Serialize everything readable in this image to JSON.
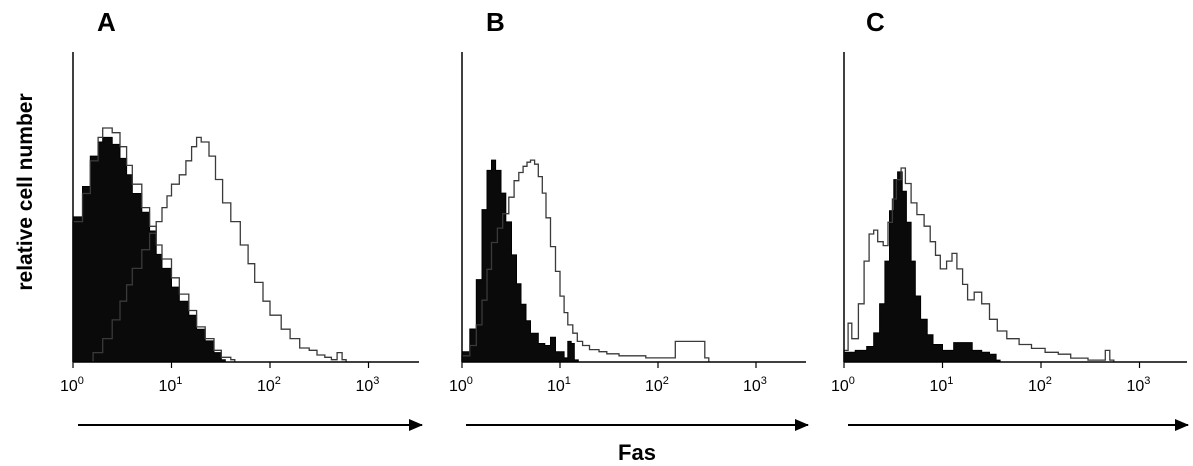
{
  "figure": {
    "ylabel": "relative cell number",
    "xlabel": "Fas"
  },
  "chart_data": [
    {
      "type": "area",
      "panel": "A",
      "xscale": "log",
      "xlim": [
        1,
        2000
      ],
      "ticks": [
        {
          "base": "10",
          "exp": "0",
          "value": 1
        },
        {
          "base": "10",
          "exp": "1",
          "value": 10
        },
        {
          "base": "10",
          "exp": "2",
          "value": 100
        },
        {
          "base": "10",
          "exp": "3",
          "value": 1000
        }
      ],
      "series": [
        {
          "style": "filled",
          "x": [
            1.0,
            1.25,
            1.5,
            1.8,
            2.0,
            2.5,
            3.0,
            3.5,
            4.0,
            5.0,
            6.0,
            7.0,
            8.0,
            10.0,
            12.0,
            15.0,
            18.0,
            22.0,
            27.0,
            32.0
          ],
          "y": [
            62,
            75,
            88,
            94,
            96,
            93,
            87,
            80,
            72,
            64,
            56,
            46,
            40,
            32,
            26,
            20,
            14,
            9,
            4,
            1
          ]
        },
        {
          "style": "open",
          "x": [
            1.0,
            1.25,
            1.5,
            1.8,
            2.0,
            2.5,
            3.0,
            3.5,
            4.0,
            5.0,
            6.0,
            7.0,
            8.0,
            10.0,
            12.0,
            15.0,
            18.0,
            22.0,
            27.0,
            32.0,
            40.0
          ],
          "y": [
            60,
            72,
            86,
            96,
            100,
            98,
            92,
            84,
            76,
            66,
            58,
            50,
            44,
            36,
            29,
            22,
            15,
            10,
            5,
            2,
            1
          ]
        },
        {
          "style": "open",
          "x": [
            1.6,
            2.0,
            2.5,
            3.0,
            3.5,
            4.0,
            5.0,
            6.0,
            7.0,
            8.0,
            9.0,
            10.0,
            12.0,
            14.0,
            16.0,
            18.0,
            20.0,
            24.0,
            28.0,
            33.0,
            40.0,
            50.0,
            60.0,
            70.0,
            85.0,
            100.0,
            130.0,
            160.0,
            200.0,
            250.0,
            300.0,
            360.0,
            420.0,
            480.0,
            540.0
          ],
          "y": [
            4,
            10,
            18,
            26,
            33,
            40,
            48,
            55,
            60,
            66,
            71,
            76,
            80,
            86,
            92,
            96,
            94,
            88,
            78,
            68,
            60,
            50,
            42,
            34,
            26,
            20,
            14,
            10,
            6,
            5,
            3,
            2,
            1,
            4,
            1
          ]
        }
      ]
    },
    {
      "type": "area",
      "panel": "B",
      "xscale": "log",
      "xlim": [
        1,
        2000
      ],
      "ticks": [
        {
          "base": "10",
          "exp": "0",
          "value": 1
        },
        {
          "base": "10",
          "exp": "1",
          "value": 10
        },
        {
          "base": "10",
          "exp": "2",
          "value": 100
        },
        {
          "base": "10",
          "exp": "3",
          "value": 1000
        }
      ],
      "series": [
        {
          "style": "filled",
          "x": [
            1.0,
            1.2,
            1.4,
            1.6,
            1.8,
            2.0,
            2.2,
            2.5,
            2.8,
            3.2,
            3.6,
            4.0,
            4.5,
            5.0,
            6.0,
            7.0,
            8.0,
            9.0,
            11.0,
            12.0,
            13.0,
            14.0
          ],
          "y": [
            5,
            16,
            40,
            74,
            93,
            98,
            93,
            82,
            68,
            52,
            38,
            28,
            20,
            14,
            9,
            8,
            12,
            5,
            2,
            10,
            9,
            1
          ]
        },
        {
          "style": "open",
          "x": [
            1.0,
            1.2,
            1.4,
            1.6,
            1.8,
            2.0,
            2.3,
            2.6,
            3.0,
            3.4,
            3.8,
            4.2,
            4.6,
            5.0,
            5.5,
            6.0,
            6.6,
            7.2,
            8.0,
            9.0,
            10.0,
            11.0,
            12.0,
            13.5,
            15.0,
            17.0,
            20.0,
            25.0,
            30.0,
            40.0,
            55.0,
            75.0,
            100.0,
            150.0,
            200.0,
            250.0,
            300.0
          ],
          "y": [
            3,
            8,
            18,
            30,
            45,
            58,
            65,
            72,
            80,
            88,
            92,
            95,
            97,
            98,
            96,
            90,
            82,
            70,
            56,
            44,
            32,
            24,
            18,
            14,
            10,
            8,
            6,
            5,
            4,
            3,
            3,
            2,
            2,
            10,
            10,
            10,
            2
          ]
        }
      ]
    },
    {
      "type": "area",
      "panel": "C",
      "xscale": "log",
      "xlim": [
        1,
        2000
      ],
      "ticks": [
        {
          "base": "10",
          "exp": "0",
          "value": 1
        },
        {
          "base": "10",
          "exp": "1",
          "value": 10
        },
        {
          "base": "10",
          "exp": "2",
          "value": 100
        },
        {
          "base": "10",
          "exp": "3",
          "value": 1000
        }
      ],
      "series": [
        {
          "style": "filled",
          "x": [
            1.0,
            1.3,
            1.7,
            2.0,
            2.3,
            2.6,
            2.9,
            3.2,
            3.5,
            3.9,
            4.3,
            4.8,
            5.3,
            6.0,
            7.0,
            8.0,
            10.0,
            13.0,
            16.0,
            20.0,
            25.0,
            30.0,
            35.0
          ],
          "y": [
            5,
            6,
            8,
            15,
            30,
            52,
            78,
            94,
            98,
            88,
            72,
            52,
            34,
            22,
            14,
            9,
            6,
            10,
            10,
            6,
            5,
            4,
            1
          ]
        },
        {
          "style": "open",
          "x": [
            1.0,
            1.1,
            1.2,
            1.4,
            1.6,
            1.8,
            2.0,
            2.2,
            2.5,
            2.8,
            3.1,
            3.4,
            3.8,
            4.2,
            4.8,
            5.5,
            6.5,
            7.5,
            8.5,
            9.5,
            11.0,
            12.5,
            14.0,
            16.0,
            18.0,
            21.0,
            25.0,
            30.0,
            36.0,
            45.0,
            60.0,
            80.0,
            110.0,
            150.0,
            200.0,
            300.0,
            400.0,
            450.0,
            500.0
          ],
          "y": [
            6,
            20,
            12,
            30,
            52,
            66,
            68,
            62,
            60,
            72,
            84,
            94,
            100,
            92,
            82,
            76,
            70,
            62,
            55,
            48,
            52,
            56,
            48,
            40,
            32,
            36,
            30,
            22,
            16,
            12,
            9,
            7,
            5,
            4,
            2,
            1,
            1,
            6,
            1
          ]
        }
      ]
    }
  ]
}
